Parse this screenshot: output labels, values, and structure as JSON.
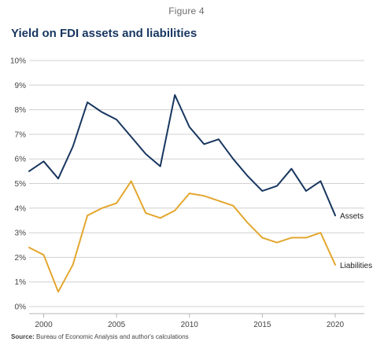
{
  "figure_label": "Figure 4",
  "source_label": "Source:",
  "source_text": "Bureau of Economic Analysis and author's calculations",
  "colors": {
    "assets": "#17365f",
    "liabilities": "#e3a72f",
    "grid": "#d0d0d0",
    "text": "#444444"
  },
  "chart_data": {
    "type": "line",
    "title": "Yield on FDI assets and liabilities",
    "xlabel": "",
    "ylabel": "",
    "xlim": [
      1999,
      2022
    ],
    "ylim": [
      0,
      10
    ],
    "x_ticks": [
      2000,
      2005,
      2010,
      2015,
      2020
    ],
    "y_ticks": [
      "0%",
      "1%",
      "2%",
      "3%",
      "4%",
      "5%",
      "6%",
      "7%",
      "8%",
      "9%",
      "10%"
    ],
    "x": [
      1999,
      2000,
      2001,
      2002,
      2003,
      2004,
      2005,
      2006,
      2007,
      2008,
      2009,
      2010,
      2011,
      2012,
      2013,
      2014,
      2015,
      2016,
      2017,
      2018,
      2019,
      2020
    ],
    "series": [
      {
        "name": "Assets",
        "color": "#17365f",
        "values": [
          5.5,
          5.9,
          5.2,
          6.5,
          8.3,
          7.9,
          7.6,
          6.9,
          6.2,
          5.7,
          8.6,
          7.3,
          6.6,
          6.8,
          6.0,
          5.3,
          4.7,
          4.9,
          5.6,
          4.7,
          5.1,
          3.7
        ]
      },
      {
        "name": "Liabilities",
        "color": "#e3a72f",
        "values": [
          2.4,
          2.1,
          0.6,
          1.7,
          3.7,
          4.0,
          4.2,
          5.1,
          3.8,
          3.6,
          3.9,
          4.6,
          4.5,
          4.3,
          4.1,
          3.4,
          2.8,
          2.6,
          2.8,
          2.8,
          3.0,
          1.7
        ]
      }
    ],
    "grid": true,
    "legend": "labels at line ends"
  }
}
